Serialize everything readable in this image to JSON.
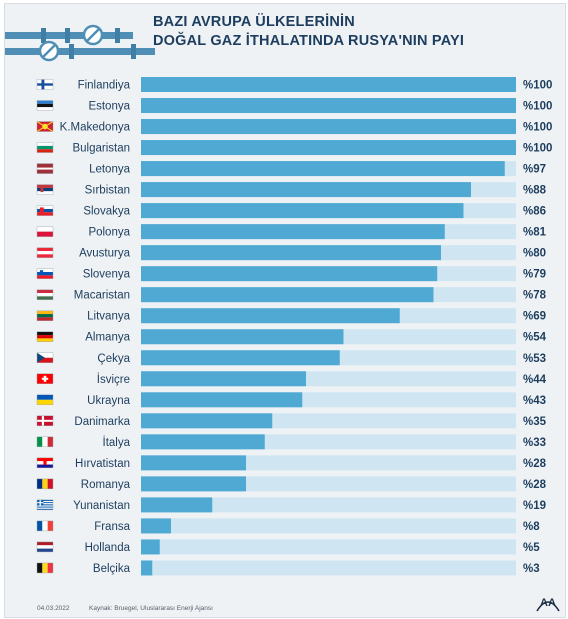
{
  "title": {
    "line1": "BAZI AVRUPA ÜLKELERİNİN",
    "line2": "DOĞAL GAZ İTHALATINDA RUSYA'NIN PAYI"
  },
  "footer": {
    "date": "04.03.2022",
    "source": "Kaynak: Bruegel, Uluslararası Enerji Ajansı",
    "logo": "AA"
  },
  "colors": {
    "bar": "#4fa9d3",
    "track": "#cfe6f2",
    "text": "#1d3d5e",
    "pipe": "#4f8fb5"
  },
  "icons": [
    "pipeline-valve-icon"
  ],
  "chart_data": {
    "type": "bar",
    "orientation": "horizontal",
    "categories": [
      "Finlandiya",
      "Estonya",
      "K.Makedonya",
      "Bulgaristan",
      "Letonya",
      "Sırbistan",
      "Slovakya",
      "Polonya",
      "Avusturya",
      "Slovenya",
      "Macaristan",
      "Litvanya",
      "Almanya",
      "Çekya",
      "İsviçre",
      "Ukrayna",
      "Danimarka",
      "İtalya",
      "Hırvatistan",
      "Romanya",
      "Yunanistan",
      "Fransa",
      "Hollanda",
      "Belçika"
    ],
    "values": [
      100,
      100,
      100,
      100,
      97,
      88,
      86,
      81,
      80,
      79,
      78,
      69,
      54,
      53,
      44,
      43,
      35,
      33,
      28,
      28,
      19,
      8,
      5,
      3
    ],
    "value_labels": [
      "%100",
      "%100",
      "%100",
      "%100",
      "%97",
      "%88",
      "%86",
      "%81",
      "%80",
      "%79",
      "%78",
      "%69",
      "%54",
      "%53",
      "%44",
      "%43",
      "%35",
      "%33",
      "%28",
      "%28",
      "%19",
      "%8",
      "%5",
      "%3"
    ],
    "flags": [
      "finland",
      "estonia",
      "north-macedonia",
      "bulgaria",
      "latvia",
      "serbia",
      "slovakia",
      "poland",
      "austria",
      "slovenia",
      "hungary",
      "lithuania",
      "germany",
      "czechia",
      "switzerland",
      "ukraine",
      "denmark",
      "italy",
      "croatia",
      "romania",
      "greece",
      "france",
      "netherlands",
      "belgium"
    ],
    "xlim": [
      0,
      100
    ],
    "grid": false,
    "legend": "none"
  }
}
